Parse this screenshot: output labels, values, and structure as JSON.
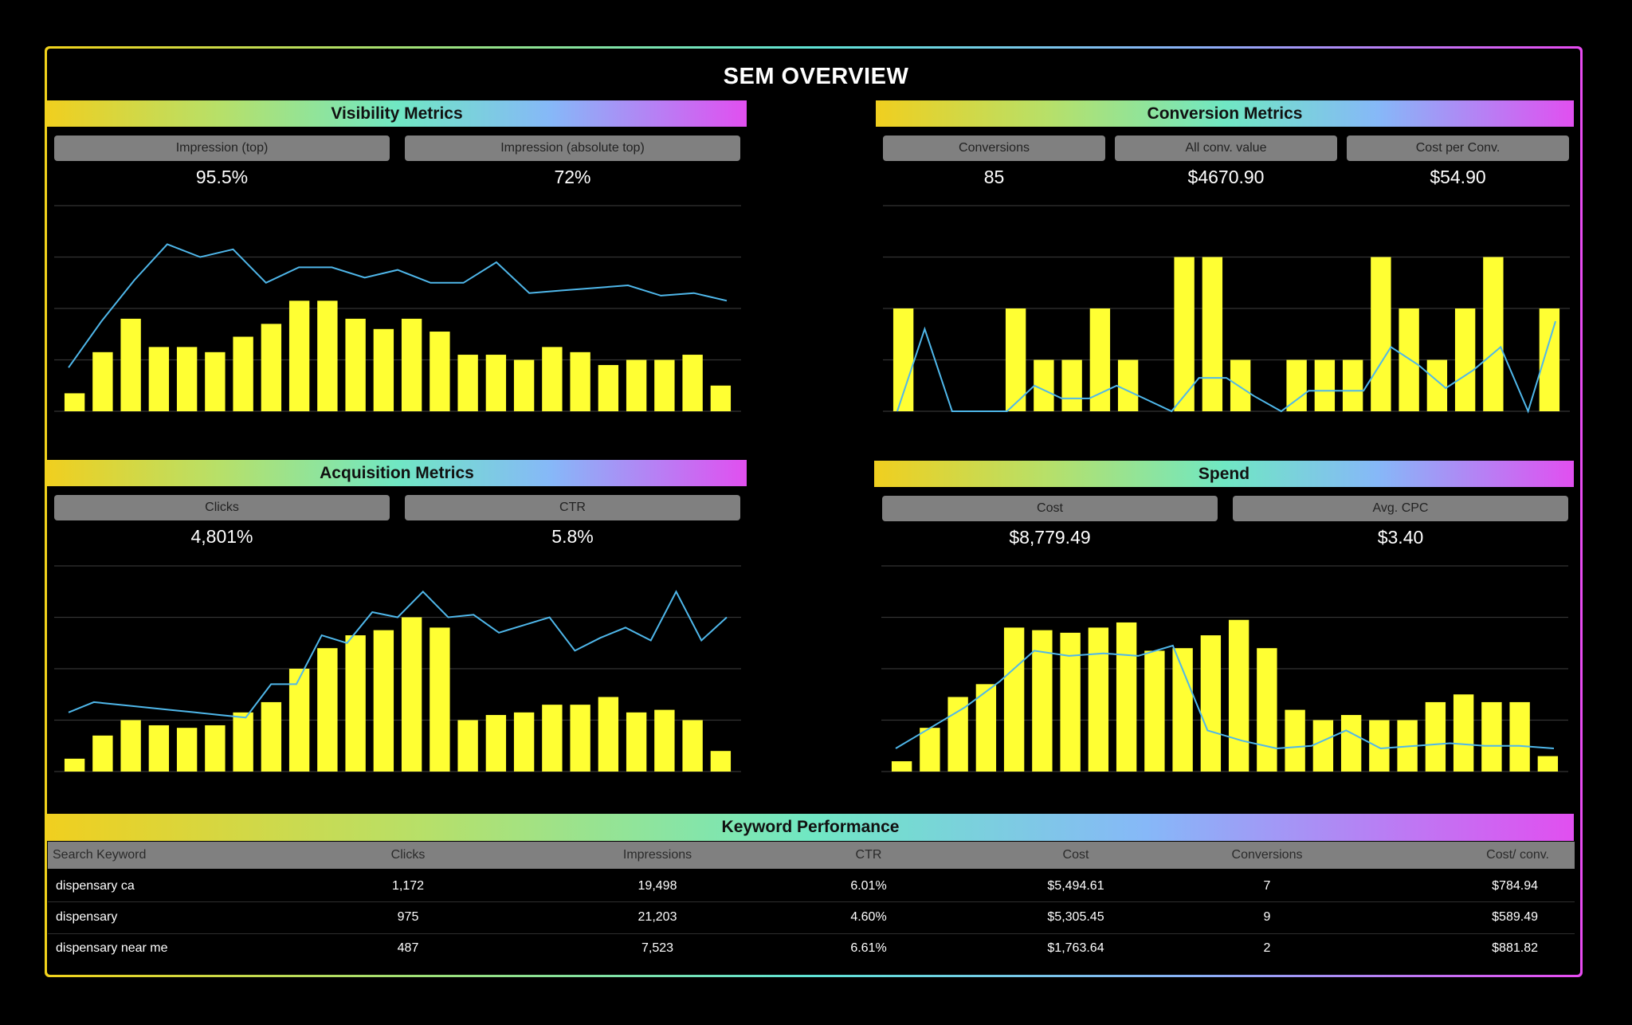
{
  "page": {
    "title": "SEM OVERVIEW"
  },
  "colors": {
    "bar": "#ffff33",
    "line": "#4fb7ea",
    "panel_label_bg": "#808080",
    "grid": "#333333"
  },
  "visibility": {
    "title": "Visibility Metrics",
    "kpis": [
      {
        "label": "Impression (top)",
        "value": "95.5%"
      },
      {
        "label": "Impression (absolute top)",
        "value": "72%"
      }
    ]
  },
  "conversion": {
    "title": "Conversion Metrics",
    "kpis": [
      {
        "label": "Conversions",
        "value": "85"
      },
      {
        "label": "All conv. value",
        "value": "$4670.90"
      },
      {
        "label": "Cost per Conv.",
        "value": "$54.90"
      }
    ]
  },
  "acquisition": {
    "title": "Acquisition Metrics",
    "kpis": [
      {
        "label": "Clicks",
        "value": "4,801%"
      },
      {
        "label": "CTR",
        "value": "5.8%"
      }
    ]
  },
  "spend": {
    "title": "Spend",
    "kpis": [
      {
        "label": "Cost",
        "value": "$8,779.49"
      },
      {
        "label": "Avg. CPC",
        "value": "$3.40"
      }
    ]
  },
  "chart_data": [
    {
      "type": "bar",
      "id": "visibility",
      "bars": [
        0.7,
        2.3,
        3.6,
        2.5,
        2.5,
        2.3,
        2.9,
        3.4,
        4.3,
        4.3,
        3.6,
        3.2,
        3.6,
        3.1,
        2.2,
        2.2,
        2.0,
        2.5,
        2.3,
        1.8,
        2.0,
        2.0,
        2.2,
        1.0
      ],
      "line": [
        1.7,
        3.5,
        5.1,
        6.5,
        6.0,
        6.3,
        5.0,
        5.6,
        5.6,
        5.2,
        5.5,
        5.0,
        5.0,
        5.8,
        4.6,
        4.7,
        4.8,
        4.9,
        4.5,
        4.6,
        4.3
      ],
      "ylim": [
        0,
        8
      ],
      "grid": true
    },
    {
      "type": "bar",
      "id": "conversion",
      "bars": [
        2,
        null,
        null,
        null,
        2,
        1,
        1,
        2,
        1,
        null,
        3,
        3,
        1,
        null,
        1,
        1,
        1,
        3,
        2,
        1,
        2,
        3,
        null,
        2
      ],
      "line": [
        0,
        1.6,
        0,
        0,
        0,
        0.5,
        0.25,
        0.25,
        0.5,
        0.25,
        0,
        0.65,
        0.65,
        0.3,
        0,
        0.4,
        0.4,
        0.4,
        1.25,
        0.9,
        0.45,
        0.8,
        1.25,
        0,
        1.75
      ],
      "ylim": [
        0,
        4
      ],
      "grid": true
    },
    {
      "type": "bar",
      "id": "acquisition",
      "bars": [
        0.5,
        1.4,
        2.0,
        1.8,
        1.7,
        1.8,
        2.3,
        2.7,
        4.0,
        4.8,
        5.3,
        5.5,
        6.0,
        5.6,
        2.0,
        2.2,
        2.3,
        2.6,
        2.6,
        2.9,
        2.3,
        2.4,
        2.0,
        0.8
      ],
      "line": [
        2.3,
        2.7,
        2.6,
        2.5,
        2.4,
        2.3,
        2.2,
        2.1,
        3.4,
        3.4,
        5.3,
        5.0,
        6.2,
        6.0,
        7.0,
        6.0,
        6.1,
        5.4,
        5.7,
        6.0,
        4.7,
        5.2,
        5.6,
        5.1,
        7.0,
        5.1,
        6.0
      ],
      "ylim": [
        0,
        8
      ],
      "grid": true
    },
    {
      "type": "bar",
      "id": "spend",
      "bars": [
        0.4,
        1.7,
        2.9,
        3.4,
        5.6,
        5.5,
        5.4,
        5.6,
        5.8,
        4.7,
        4.8,
        5.3,
        5.9,
        4.8,
        2.4,
        2.0,
        2.2,
        2.0,
        2.0,
        2.7,
        3.0,
        2.7,
        2.7,
        0.6
      ],
      "line": [
        0.9,
        1.7,
        2.5,
        3.5,
        4.7,
        4.5,
        4.6,
        4.5,
        4.9,
        1.6,
        1.2,
        0.9,
        1.0,
        1.6,
        0.9,
        1.0,
        1.1,
        1.0,
        1.0,
        0.9
      ],
      "ylim": [
        0,
        8
      ],
      "grid": true
    }
  ],
  "keywords": {
    "title": "Keyword Performance",
    "columns": [
      "Search Keyword",
      "Clicks",
      "Impressions",
      "CTR",
      "Cost",
      "Conversions",
      "Cost/ conv."
    ],
    "rows": [
      [
        "dispensary ca",
        "1,172",
        "19,498",
        "6.01%",
        "$5,494.61",
        "7",
        "$784.94"
      ],
      [
        "dispensary",
        "975",
        "21,203",
        "4.60%",
        "$5,305.45",
        "9",
        "$589.49"
      ],
      [
        "dispensary near me",
        "487",
        "7,523",
        "6.61%",
        "$1,763.64",
        "2",
        "$881.82"
      ]
    ]
  }
}
